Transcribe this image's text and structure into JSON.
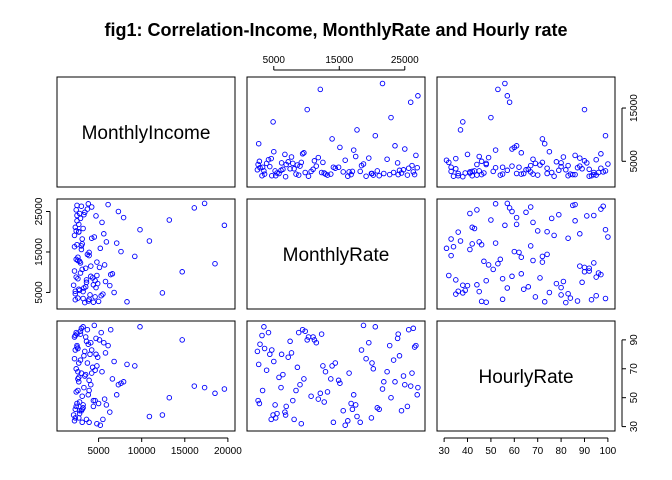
{
  "title": "fig1: Correlation-Income, MonthlyRate and Hourly rate",
  "chart_data": {
    "type": "scatter",
    "kind": "scatterplot-matrix",
    "title": "fig1: Correlation-Income, MonthlyRate and Hourly rate",
    "point_color": "#0000ff",
    "point_style": "open-circle",
    "grid": false,
    "variables": [
      {
        "name": "MonthlyIncome",
        "range": [
          1000,
          20000
        ],
        "ticks": [
          5000,
          10000,
          15000,
          20000
        ],
        "tick_labels": [
          "5000",
          "10000",
          "15000",
          "20000"
        ]
      },
      {
        "name": "MonthlyRate",
        "range": [
          2000,
          27000
        ],
        "ticks": [
          5000,
          15000,
          25000
        ],
        "tick_labels": [
          "5000",
          "15000",
          "25000"
        ]
      },
      {
        "name": "HourlyRate",
        "range": [
          30,
          100
        ],
        "ticks": [
          30,
          40,
          50,
          60,
          70,
          80,
          90,
          100
        ],
        "tick_labels": [
          "30",
          "40",
          "50",
          "60",
          "70",
          "80",
          "90",
          "100"
        ]
      }
    ],
    "axes": {
      "top": {
        "column": 1,
        "variable": "MonthlyRate",
        "tick_labels": [
          "5000",
          "15000",
          "25000"
        ]
      },
      "right_top": {
        "row": 0,
        "variable": "MonthlyIncome",
        "tick_labels": [
          "5000",
          "15000"
        ]
      },
      "left": [
        {
          "row": 1,
          "variable": "MonthlyRate",
          "tick_labels": [
            "5000",
            "15000",
            "25000"
          ]
        }
      ],
      "right": [
        {
          "row": 2,
          "variable": "HourlyRate",
          "tick_labels": [
            "30",
            "50",
            "70",
            "90"
          ]
        }
      ],
      "bottom": [
        {
          "column": 0,
          "variable": "MonthlyIncome",
          "tick_labels": [
            "5000",
            "10000",
            "15000",
            "20000"
          ]
        },
        {
          "column": 2,
          "variable": "HourlyRate",
          "tick_labels": [
            "30",
            "40",
            "50",
            "60",
            "70",
            "80",
            "90",
            "100"
          ]
        }
      ]
    },
    "observations": [
      [
        2500,
        24000,
        94
      ],
      [
        3200,
        5200,
        45
      ],
      [
        4800,
        12500,
        72
      ],
      [
        2100,
        6800,
        38
      ],
      [
        5600,
        19500,
        88
      ],
      [
        3900,
        3300,
        55
      ],
      [
        2700,
        21800,
        61
      ],
      [
        6400,
        9400,
        97
      ],
      [
        3000,
        15600,
        41
      ],
      [
        4200,
        26100,
        67
      ],
      [
        2300,
        4700,
        83
      ],
      [
        7100,
        17200,
        52
      ],
      [
        3600,
        8100,
        35
      ],
      [
        2900,
        23300,
        76
      ],
      [
        5100,
        11200,
        90
      ],
      [
        4400,
        2600,
        48
      ],
      [
        2600,
        13700,
        63
      ],
      [
        9800,
        20500,
        99
      ],
      [
        3300,
        6100,
        57
      ],
      [
        2400,
        25400,
        44
      ],
      [
        5800,
        7700,
        81
      ],
      [
        3100,
        18200,
        33
      ],
      [
        4600,
        3900,
        69
      ],
      [
        2200,
        10300,
        92
      ],
      [
        13200,
        22900,
        50
      ],
      [
        3700,
        14400,
        74
      ],
      [
        2800,
        5500,
        39
      ],
      [
        6100,
        26700,
        86
      ],
      [
        4100,
        9000,
        59
      ],
      [
        2500,
        16800,
        46
      ],
      [
        5300,
        4200,
        95
      ],
      [
        3400,
        24800,
        65
      ],
      [
        18500,
        12100,
        53
      ],
      [
        4900,
        7200,
        78
      ],
      [
        2700,
        19900,
        36
      ],
      [
        3800,
        2900,
        87
      ],
      [
        7600,
        15100,
        60
      ],
      [
        2300,
        21100,
        42
      ],
      [
        4300,
        8600,
        71
      ],
      [
        3000,
        26300,
        98
      ],
      [
        5700,
        11800,
        49
      ],
      [
        2600,
        3600,
        84
      ],
      [
        10900,
        17700,
        37
      ],
      [
        3500,
        6400,
        66
      ],
      [
        4700,
        23900,
        91
      ],
      [
        2400,
        13200,
        54
      ],
      [
        6800,
        5000,
        75
      ],
      [
        3200,
        20800,
        43
      ],
      [
        2900,
        9800,
        96
      ],
      [
        16100,
        25900,
        58
      ],
      [
        4000,
        4400,
        80
      ],
      [
        2200,
        16300,
        34
      ],
      [
        5400,
        22300,
        68
      ],
      [
        3600,
        7500,
        89
      ],
      [
        2800,
        12700,
        47
      ],
      [
        8300,
        2700,
        73
      ],
      [
        4500,
        18700,
        100
      ],
      [
        3100,
        10700,
        51
      ],
      [
        2500,
        26500,
        85
      ],
      [
        6300,
        6700,
        40
      ],
      [
        3900,
        14900,
        62
      ],
      [
        2300,
        3200,
        93
      ],
      [
        19600,
        21600,
        56
      ],
      [
        4800,
        9200,
        32
      ],
      [
        3300,
        24200,
        79
      ],
      [
        2700,
        5800,
        64
      ],
      [
        5900,
        17500,
        45
      ],
      [
        4100,
        11500,
        88
      ],
      [
        2400,
        20200,
        70
      ],
      [
        12400,
        4900,
        38
      ],
      [
        3700,
        25600,
        97
      ],
      [
        2600,
        8400,
        55
      ],
      [
        5200,
        15900,
        31
      ],
      [
        3400,
        2500,
        82
      ],
      [
        7900,
        23500,
        61
      ],
      [
        2900,
        12300,
        94
      ],
      [
        4400,
        6900,
        44
      ],
      [
        2200,
        19100,
        77
      ],
      [
        3800,
        26900,
        52
      ],
      [
        14700,
        10100,
        90
      ],
      [
        5500,
        4600,
        35
      ],
      [
        3000,
        16500,
        67
      ],
      [
        2500,
        22700,
        86
      ],
      [
        4600,
        7900,
        48
      ],
      [
        9200,
        13900,
        72
      ],
      [
        3200,
        3500,
        99
      ],
      [
        2800,
        24500,
        41
      ],
      [
        6600,
        9600,
        63
      ],
      [
        4200,
        18400,
        83
      ],
      [
        2300,
        5300,
        36
      ],
      [
        17300,
        27000,
        57
      ],
      [
        3500,
        11000,
        92
      ],
      [
        5000,
        2800,
        46
      ],
      [
        2700,
        20000,
        74
      ],
      [
        3900,
        14100,
        33
      ],
      [
        2400,
        8800,
        95
      ],
      [
        7300,
        25000,
        59
      ],
      [
        4700,
        6200,
        80
      ],
      [
        3100,
        17000,
        42
      ],
      [
        2600,
        12900,
        68
      ]
    ]
  }
}
